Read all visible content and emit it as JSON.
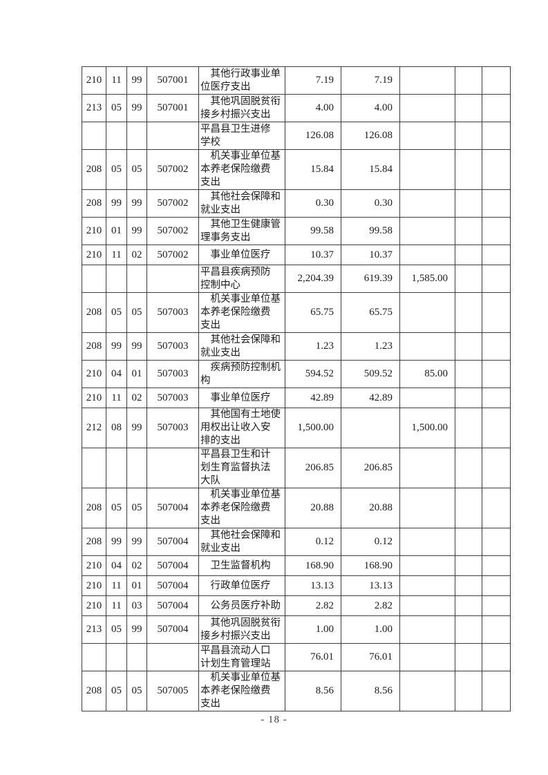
{
  "page": {
    "number_label": "- 18 -"
  },
  "table": {
    "rows": [
      {
        "code1": "210",
        "code2": "11",
        "code3": "99",
        "code4": "507001",
        "desc": "　其他行政事业单\n位医疗支出",
        "amt1": "7.19",
        "amt2": "7.19",
        "amt3": ""
      },
      {
        "code1": "213",
        "code2": "05",
        "code3": "99",
        "code4": "507001",
        "desc": "　其他巩固脱贫衔\n接乡村振兴支出",
        "amt1": "4.00",
        "amt2": "4.00",
        "amt3": ""
      },
      {
        "code1": "",
        "code2": "",
        "code3": "",
        "code4": "",
        "desc": "平昌县卫生进修\n学校",
        "amt1": "126.08",
        "amt2": "126.08",
        "amt3": ""
      },
      {
        "code1": "208",
        "code2": "05",
        "code3": "05",
        "code4": "507002",
        "desc": "　机关事业单位基\n本养老保险缴费\n支出",
        "amt1": "15.84",
        "amt2": "15.84",
        "amt3": ""
      },
      {
        "code1": "208",
        "code2": "99",
        "code3": "99",
        "code4": "507002",
        "desc": "　其他社会保障和\n就业支出",
        "amt1": "0.30",
        "amt2": "0.30",
        "amt3": ""
      },
      {
        "code1": "210",
        "code2": "01",
        "code3": "99",
        "code4": "507002",
        "desc": "　其他卫生健康管\n理事务支出",
        "amt1": "99.58",
        "amt2": "99.58",
        "amt3": ""
      },
      {
        "code1": "210",
        "code2": "11",
        "code3": "02",
        "code4": "507002",
        "desc": "　事业单位医疗",
        "amt1": "10.37",
        "amt2": "10.37",
        "amt3": ""
      },
      {
        "code1": "",
        "code2": "",
        "code3": "",
        "code4": "",
        "desc": "平昌县疾病预防\n控制中心",
        "amt1": "2,204.39",
        "amt2": "619.39",
        "amt3": "1,585.00"
      },
      {
        "code1": "208",
        "code2": "05",
        "code3": "05",
        "code4": "507003",
        "desc": "　机关事业单位基\n本养老保险缴费\n支出",
        "amt1": "65.75",
        "amt2": "65.75",
        "amt3": ""
      },
      {
        "code1": "208",
        "code2": "99",
        "code3": "99",
        "code4": "507003",
        "desc": "　其他社会保障和\n就业支出",
        "amt1": "1.23",
        "amt2": "1.23",
        "amt3": ""
      },
      {
        "code1": "210",
        "code2": "04",
        "code3": "01",
        "code4": "507003",
        "desc": "　疾病预防控制机\n构",
        "amt1": "594.52",
        "amt2": "509.52",
        "amt3": "85.00"
      },
      {
        "code1": "210",
        "code2": "11",
        "code3": "02",
        "code4": "507003",
        "desc": "　事业单位医疗",
        "amt1": "42.89",
        "amt2": "42.89",
        "amt3": ""
      },
      {
        "code1": "212",
        "code2": "08",
        "code3": "99",
        "code4": "507003",
        "desc": "　其他国有土地使\n用权出让收入安\n排的支出",
        "amt1": "1,500.00",
        "amt2": "",
        "amt3": "1,500.00"
      },
      {
        "code1": "",
        "code2": "",
        "code3": "",
        "code4": "",
        "desc": "平昌县卫生和计\n划生育监督执法\n大队",
        "amt1": "206.85",
        "amt2": "206.85",
        "amt3": ""
      },
      {
        "code1": "208",
        "code2": "05",
        "code3": "05",
        "code4": "507004",
        "desc": "　机关事业单位基\n本养老保险缴费\n支出",
        "amt1": "20.88",
        "amt2": "20.88",
        "amt3": ""
      },
      {
        "code1": "208",
        "code2": "99",
        "code3": "99",
        "code4": "507004",
        "desc": "　其他社会保障和\n就业支出",
        "amt1": "0.12",
        "amt2": "0.12",
        "amt3": ""
      },
      {
        "code1": "210",
        "code2": "04",
        "code3": "02",
        "code4": "507004",
        "desc": "　卫生监督机构",
        "amt1": "168.90",
        "amt2": "168.90",
        "amt3": ""
      },
      {
        "code1": "210",
        "code2": "11",
        "code3": "01",
        "code4": "507004",
        "desc": "　行政单位医疗",
        "amt1": "13.13",
        "amt2": "13.13",
        "amt3": ""
      },
      {
        "code1": "210",
        "code2": "11",
        "code3": "03",
        "code4": "507004",
        "desc": "　公务员医疗补助",
        "amt1": "2.82",
        "amt2": "2.82",
        "amt3": ""
      },
      {
        "code1": "213",
        "code2": "05",
        "code3": "99",
        "code4": "507004",
        "desc": "　其他巩固脱贫衔\n接乡村振兴支出",
        "amt1": "1.00",
        "amt2": "1.00",
        "amt3": ""
      },
      {
        "code1": "",
        "code2": "",
        "code3": "",
        "code4": "",
        "desc": "平昌县流动人口\n计划生育管理站",
        "amt1": "76.01",
        "amt2": "76.01",
        "amt3": ""
      },
      {
        "code1": "208",
        "code2": "05",
        "code3": "05",
        "code4": "507005",
        "desc": "　机关事业单位基\n本养老保险缴费\n支出",
        "amt1": "8.56",
        "amt2": "8.56",
        "amt3": ""
      }
    ]
  }
}
